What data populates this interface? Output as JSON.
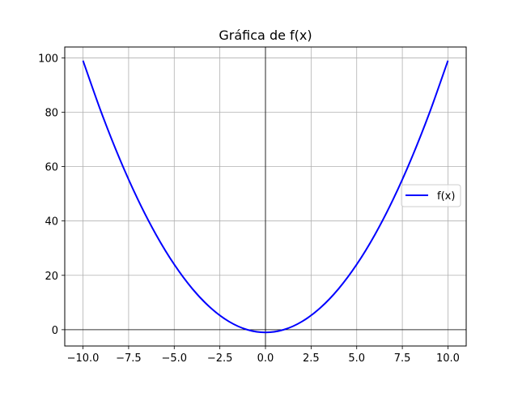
{
  "chart_data": {
    "type": "line",
    "title": "Gráfica de f(x)",
    "xlabel": "",
    "ylabel": "",
    "xlim": [
      -11,
      11
    ],
    "ylim": [
      -6,
      104
    ],
    "xticks": [
      -10.0,
      -7.5,
      -5.0,
      -2.5,
      0.0,
      2.5,
      5.0,
      7.5,
      10.0
    ],
    "xtick_labels": [
      "−10.0",
      "−7.5",
      "−5.0",
      "−2.5",
      "0.0",
      "2.5",
      "5.0",
      "7.5",
      "10.0"
    ],
    "yticks": [
      0,
      20,
      40,
      60,
      80,
      100
    ],
    "ytick_labels": [
      "0",
      "20",
      "40",
      "60",
      "80",
      "100"
    ],
    "grid": true,
    "axis_lines_at_zero": true,
    "legend_position": "center-right",
    "series": [
      {
        "name": "f(x)",
        "color": "#0000ff",
        "x": [
          -10,
          -9,
          -8,
          -7,
          -6,
          -5,
          -4,
          -3,
          -2,
          -1,
          0,
          1,
          2,
          3,
          4,
          5,
          6,
          7,
          8,
          9,
          10
        ],
        "y": [
          99,
          80,
          63,
          48,
          35,
          24,
          15,
          8,
          3,
          0,
          -1,
          0,
          3,
          8,
          15,
          24,
          35,
          48,
          63,
          80,
          99
        ]
      }
    ]
  }
}
